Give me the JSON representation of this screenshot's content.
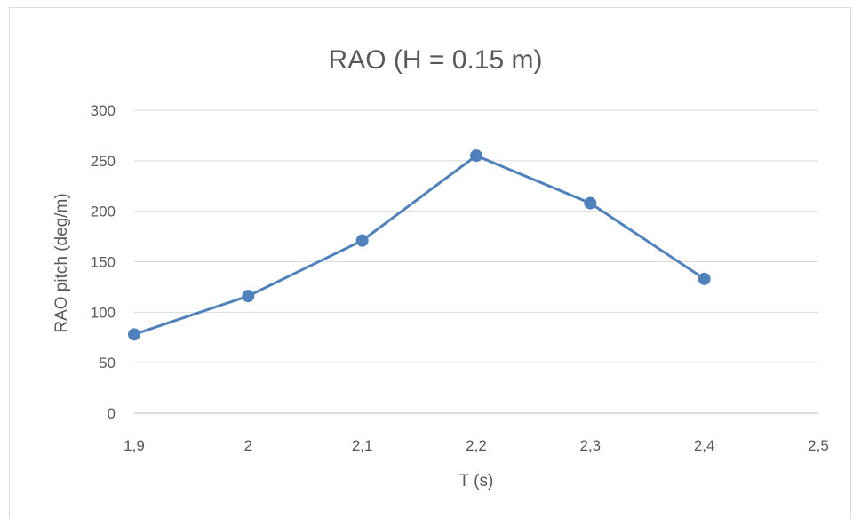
{
  "chart_data": {
    "type": "line",
    "title": "RAO (H = 0.15 m)",
    "xlabel": "T (s)",
    "ylabel": "RAO pitch (deg/m)",
    "x_ticks": [
      "1,9",
      "2",
      "2,1",
      "2,2",
      "2,3",
      "2,4",
      "2,5"
    ],
    "y_ticks": [
      "0",
      "50",
      "100",
      "150",
      "200",
      "250",
      "300"
    ],
    "xlim": [
      1.9,
      2.5
    ],
    "ylim": [
      0,
      300
    ],
    "grid": "horizontal",
    "legend": "none",
    "series": [
      {
        "color": "#4f81bd",
        "x": [
          1.9,
          2.0,
          2.1,
          2.2,
          2.3,
          2.4
        ],
        "y": [
          78,
          116,
          171,
          255,
          208,
          133
        ]
      }
    ]
  }
}
